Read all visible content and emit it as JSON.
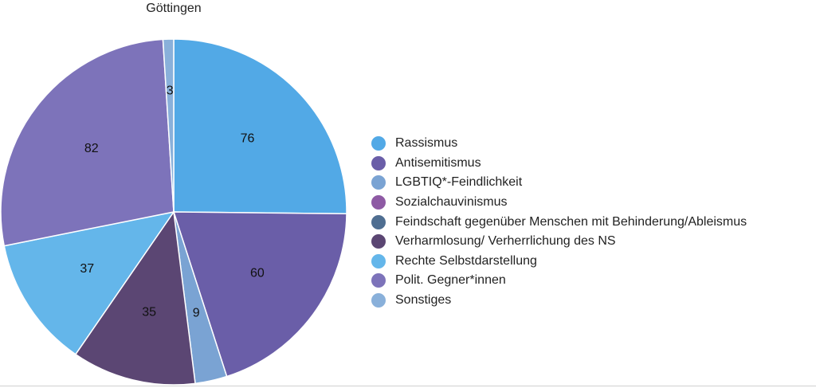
{
  "chart_data": {
    "type": "pie",
    "title": "Göttingen",
    "legend_position": "right",
    "categories": [
      "Rassismus",
      "Antisemitismus",
      "LGBTIQ*-Feindlichkeit",
      "Sozialchauvinismus",
      "Feindschaft gegenüber Menschen mit Behinderung/Ableismus",
      "Verharmlosung/ Verherrlichung des NS",
      "Rechte Selbstdarstellung",
      "Polit. Gegner*innen",
      "Sonstiges"
    ],
    "values": [
      76,
      60,
      9,
      0,
      0,
      35,
      37,
      82,
      3
    ],
    "colors": [
      "#52a9e6",
      "#6a5ea8",
      "#7aa3d3",
      "#8e5aa4",
      "#4f6e91",
      "#5b4673",
      "#64b6ea",
      "#7d73ba",
      "#89b0da"
    ]
  }
}
